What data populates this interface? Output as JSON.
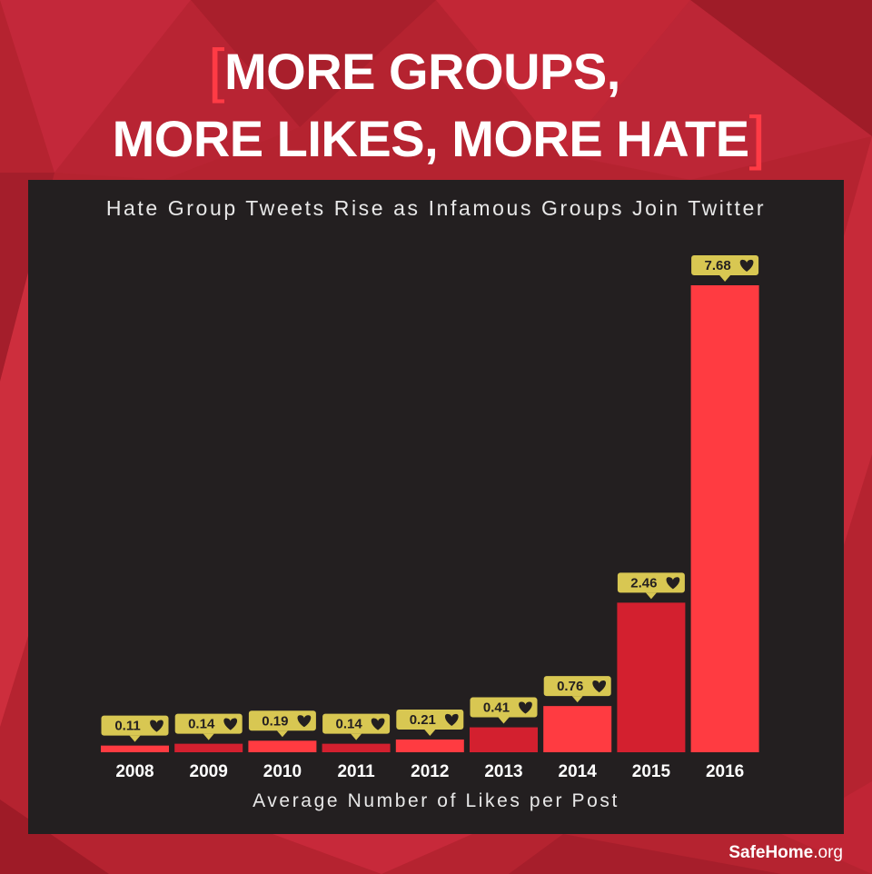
{
  "headline": {
    "open_bracket": "[",
    "line1": "MORE GROUPS,",
    "line2": "MORE LIKES, MORE HATE",
    "close_bracket": "]"
  },
  "branding": {
    "name_bold": "SafeHome",
    "name_suffix": ".org"
  },
  "colors": {
    "background": "#b52330",
    "panel": "#231f20",
    "bar_bright": "#ff3b41",
    "bar_dark": "#d3202f",
    "label_box": "#d8c752",
    "bracket": "#ff3b45"
  },
  "chart_data": {
    "type": "bar",
    "title": "Hate Group Tweets Rise as Infamous Groups Join Twitter",
    "xlabel": "Average Number of Likes per Post",
    "ylabel": "",
    "categories": [
      "2008",
      "2009",
      "2010",
      "2011",
      "2012",
      "2013",
      "2014",
      "2015",
      "2016"
    ],
    "values": [
      0.11,
      0.14,
      0.19,
      0.14,
      0.21,
      0.41,
      0.76,
      2.46,
      7.68
    ],
    "value_labels": [
      "0.11",
      "0.14",
      "0.19",
      "0.14",
      "0.21",
      "0.41",
      "0.76",
      "2.46",
      "7.68"
    ],
    "label_icon": "heart-icon",
    "ylim": [
      0,
      7.68
    ],
    "grid": false,
    "legend": "none"
  }
}
